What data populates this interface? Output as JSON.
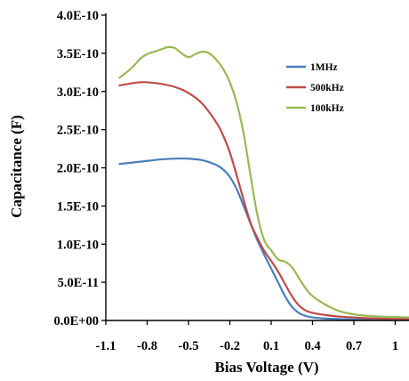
{
  "chart_data": {
    "type": "line",
    "xlabel": "Bias Voltage (V)",
    "ylabel": "Capacitance (F)",
    "xlim": [
      -1.1,
      1.1
    ],
    "ylim": [
      0,
      4e-10
    ],
    "x_ticks": [
      -1.1,
      -0.8,
      -0.5,
      -0.2,
      0.1,
      0.4,
      0.7,
      1
    ],
    "x_tick_labels": [
      "-1.1",
      "-0.8",
      "-0.5",
      "-0.2",
      "0.1",
      "0.4",
      "0.7",
      "1"
    ],
    "y_ticks": [
      0,
      5e-11,
      1e-10,
      1.5e-10,
      2e-10,
      2.5e-10,
      3e-10,
      3.5e-10,
      4e-10
    ],
    "y_tick_labels": [
      "0.0E+00",
      "5.0E-11",
      "1.0E-10",
      "1.5E-10",
      "2.0E-10",
      "2.5E-10",
      "3.0E-10",
      "3.5E-10",
      "4.0E-10"
    ],
    "grid": false,
    "legend_position": "top-right",
    "series": [
      {
        "name": "1MHz",
        "color": "#4a7ebb",
        "x": [
          -1.0,
          -0.9,
          -0.8,
          -0.7,
          -0.6,
          -0.5,
          -0.4,
          -0.3,
          -0.25,
          -0.2,
          -0.15,
          -0.1,
          -0.05,
          0.0,
          0.05,
          0.1,
          0.15,
          0.2,
          0.25,
          0.3,
          0.35,
          0.4,
          0.5,
          0.6,
          0.7,
          0.8,
          0.9,
          1.0,
          1.1
        ],
        "y": [
          2.05e-10,
          2.07e-10,
          2.09e-10,
          2.11e-10,
          2.12e-10,
          2.12e-10,
          2.1e-10,
          2.04e-10,
          1.98e-10,
          1.88e-10,
          1.72e-10,
          1.5e-10,
          1.27e-10,
          1.05e-10,
          8.6e-11,
          6.8e-11,
          5e-11,
          3.2e-11,
          1.8e-11,
          1e-11,
          6e-12,
          4e-12,
          2.5e-12,
          1.8e-12,
          1.4e-12,
          1.1e-12,
          9e-13,
          8e-13,
          7e-13
        ]
      },
      {
        "name": "500kHz",
        "color": "#be4b48",
        "x": [
          -1.0,
          -0.9,
          -0.85,
          -0.8,
          -0.7,
          -0.6,
          -0.5,
          -0.4,
          -0.3,
          -0.25,
          -0.2,
          -0.15,
          -0.1,
          -0.05,
          0.0,
          0.05,
          0.1,
          0.15,
          0.2,
          0.25,
          0.3,
          0.35,
          0.4,
          0.5,
          0.6,
          0.7,
          0.8,
          0.9,
          1.0,
          1.1
        ],
        "y": [
          3.08e-10,
          3.11e-10,
          3.12e-10,
          3.12e-10,
          3.1e-10,
          3.06e-10,
          2.98e-10,
          2.84e-10,
          2.6e-10,
          2.43e-10,
          2.2e-10,
          1.9e-10,
          1.58e-10,
          1.28e-10,
          1.08e-10,
          9.1e-11,
          7.8e-11,
          6.4e-11,
          4.8e-11,
          3.2e-11,
          2e-11,
          1.3e-11,
          1e-11,
          7e-12,
          5e-12,
          4e-12,
          3e-12,
          2.5e-12,
          2e-12,
          1.8e-12
        ]
      },
      {
        "name": "100kHz",
        "color": "#98b954",
        "x": [
          -1.0,
          -0.95,
          -0.9,
          -0.85,
          -0.8,
          -0.75,
          -0.7,
          -0.65,
          -0.6,
          -0.55,
          -0.5,
          -0.45,
          -0.4,
          -0.35,
          -0.3,
          -0.25,
          -0.2,
          -0.15,
          -0.1,
          -0.05,
          0.0,
          0.05,
          0.1,
          0.15,
          0.2,
          0.25,
          0.3,
          0.35,
          0.4,
          0.5,
          0.6,
          0.7,
          0.8,
          0.9,
          1.0,
          1.1
        ],
        "y": [
          3.18e-10,
          3.25e-10,
          3.33e-10,
          3.43e-10,
          3.49e-10,
          3.52e-10,
          3.55e-10,
          3.58e-10,
          3.57e-10,
          3.5e-10,
          3.45e-10,
          3.49e-10,
          3.52e-10,
          3.5e-10,
          3.42e-10,
          3.3e-10,
          3.12e-10,
          2.85e-10,
          2.45e-10,
          1.9e-10,
          1.38e-10,
          1.05e-10,
          9.2e-11,
          8e-11,
          7.7e-11,
          7e-11,
          5.6e-11,
          4.2e-11,
          3.2e-11,
          2e-11,
          1.2e-11,
          8e-12,
          6e-12,
          5e-12,
          4.5e-12,
          4e-12
        ]
      }
    ]
  }
}
